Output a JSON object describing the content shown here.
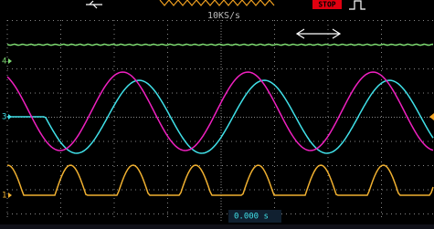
{
  "header": {
    "sample_rate": "10KS/s",
    "status": "STOP"
  },
  "channels": [
    {
      "label": "4"
    },
    {
      "label": "3"
    },
    {
      "label": "1"
    }
  ],
  "footer": {
    "time_offset": "0.000 s"
  }
}
